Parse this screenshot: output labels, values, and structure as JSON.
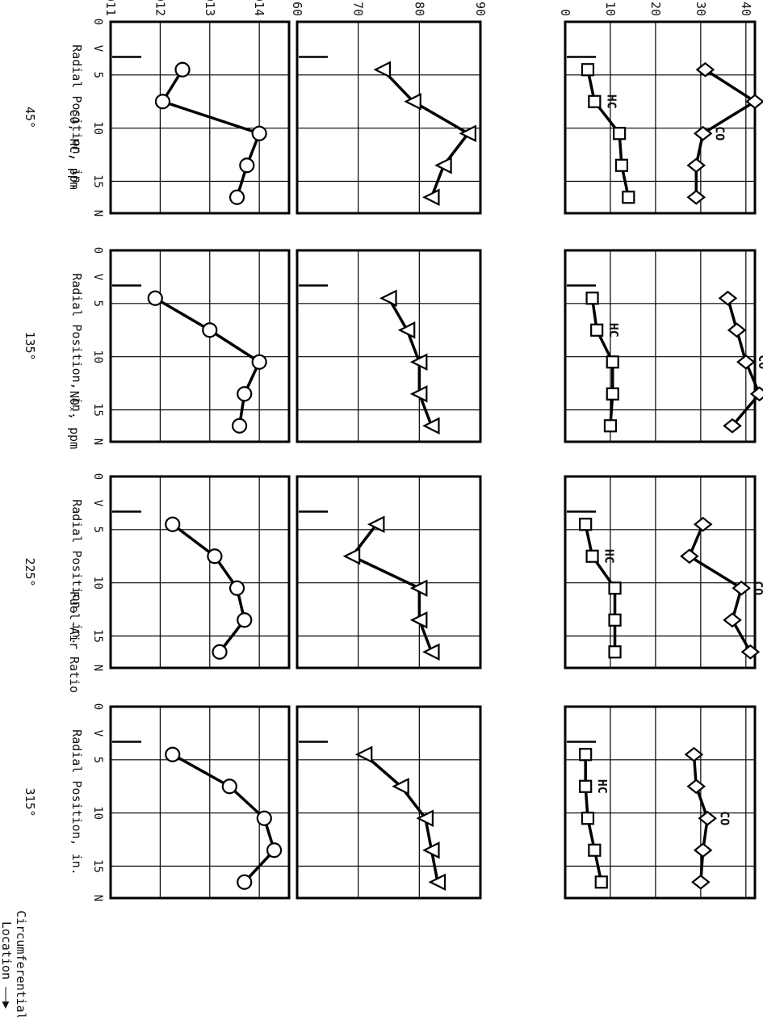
{
  "figure": {
    "row_labels": [
      "CO, HC, ppm",
      "NOₓ, ppm",
      "Fuel-Air Ratio"
    ],
    "circ_label_line1": "Circumferential",
    "circ_label_line2": "Location ——▶"
  },
  "chart_data": [
    {
      "type": "line",
      "panel": "CO/HC 45°",
      "x": [
        4.5,
        7.5,
        10.5,
        13.5,
        16.5
      ],
      "series": [
        {
          "name": "CO",
          "values": [
            31,
            42,
            30.5,
            29,
            29
          ],
          "marker": "diamond"
        },
        {
          "name": "HC",
          "values": [
            5,
            6.5,
            12,
            12.5,
            14
          ],
          "marker": "square"
        }
      ],
      "xlim": [
        0,
        18
      ],
      "ylim": [
        0,
        42
      ],
      "yticks": [
        0,
        10,
        20,
        30,
        40
      ],
      "xticks": [
        "0",
        "V",
        "5",
        "10",
        "15",
        "N"
      ],
      "xlabel": "Radial Position, in.",
      "sublabel": "45°"
    },
    {
      "type": "line",
      "panel": "NOx 45°",
      "x": [
        4.5,
        7.5,
        10.5,
        13.5,
        16.5
      ],
      "series": [
        {
          "name": "",
          "values": [
            74,
            79,
            88,
            84,
            82
          ],
          "marker": "triangle"
        }
      ],
      "xlim": [
        0,
        18
      ],
      "ylim": [
        60,
        90
      ],
      "yticks": [
        60,
        70,
        80,
        90
      ]
    },
    {
      "type": "line",
      "panel": "FAR 45°",
      "x": [
        4.5,
        7.5,
        10.5,
        13.5,
        16.5
      ],
      "series": [
        {
          "name": "",
          "values": [
            0.01245,
            0.01205,
            0.014,
            0.01375,
            0.01355
          ],
          "marker": "circle"
        }
      ],
      "xlim": [
        0,
        18
      ],
      "ylim": [
        0.011,
        0.0146
      ],
      "yticks": [
        0.011,
        0.012,
        0.013,
        0.014
      ]
    },
    {
      "type": "line",
      "panel": "CO/HC 135°",
      "x": [
        4.5,
        7.5,
        10.5,
        13.5,
        16.5
      ],
      "series": [
        {
          "name": "CO",
          "values": [
            36,
            38,
            40,
            43,
            37
          ],
          "marker": "diamond"
        },
        {
          "name": "HC",
          "values": [
            6,
            7,
            10.5,
            10.5,
            10
          ],
          "marker": "square"
        }
      ],
      "xlim": [
        0,
        18
      ],
      "ylim": [
        0,
        42
      ],
      "xticks": [
        "0",
        "V",
        "5",
        "10",
        "15",
        "N"
      ],
      "xlabel": "Radial Position, in.",
      "sublabel": "135°"
    },
    {
      "type": "line",
      "panel": "NOx 135°",
      "x": [
        4.5,
        7.5,
        10.5,
        13.5,
        16.5
      ],
      "series": [
        {
          "name": "",
          "values": [
            75,
            78,
            80,
            80,
            82
          ],
          "marker": "triangle"
        }
      ],
      "xlim": [
        0,
        18
      ],
      "ylim": [
        60,
        90
      ]
    },
    {
      "type": "line",
      "panel": "FAR 135°",
      "x": [
        4.5,
        7.5,
        10.5,
        13.5,
        16.5
      ],
      "series": [
        {
          "name": "",
          "values": [
            0.0119,
            0.013,
            0.014,
            0.0137,
            0.0136
          ],
          "marker": "circle"
        }
      ],
      "xlim": [
        0,
        18
      ],
      "ylim": [
        0.011,
        0.0146
      ]
    },
    {
      "type": "line",
      "panel": "CO/HC 225°",
      "x": [
        4.5,
        7.5,
        10.5,
        13.5,
        16.5
      ],
      "series": [
        {
          "name": "CO",
          "values": [
            30.5,
            27.5,
            39,
            37,
            41
          ],
          "marker": "diamond"
        },
        {
          "name": "HC",
          "values": [
            4.5,
            6,
            11,
            11,
            11
          ],
          "marker": "square"
        }
      ],
      "xlim": [
        0,
        18
      ],
      "ylim": [
        0,
        42
      ],
      "xticks": [
        "0",
        "V",
        "5",
        "10",
        "15",
        "N"
      ],
      "xlabel": "Radial Position, in.",
      "sublabel": "225°"
    },
    {
      "type": "line",
      "panel": "NOx 225°",
      "x": [
        4.5,
        7.5,
        10.5,
        13.5,
        16.5
      ],
      "series": [
        {
          "name": "",
          "values": [
            73,
            69,
            80,
            80,
            82
          ],
          "marker": "triangle"
        }
      ],
      "xlim": [
        0,
        18
      ],
      "ylim": [
        60,
        90
      ]
    },
    {
      "type": "line",
      "panel": "FAR 225°",
      "x": [
        4.5,
        7.5,
        10.5,
        13.5,
        16.5
      ],
      "series": [
        {
          "name": "",
          "values": [
            0.01225,
            0.0131,
            0.01355,
            0.0137,
            0.0132
          ],
          "marker": "circle"
        }
      ],
      "xlim": [
        0,
        18
      ],
      "ylim": [
        0.011,
        0.0146
      ]
    },
    {
      "type": "line",
      "panel": "CO/HC 315°",
      "x": [
        4.5,
        7.5,
        10.5,
        13.5,
        16.5
      ],
      "series": [
        {
          "name": "CO",
          "values": [
            28.5,
            29,
            31.5,
            30.5,
            30
          ],
          "marker": "diamond"
        },
        {
          "name": "HC",
          "values": [
            4.5,
            4.5,
            5,
            6.5,
            8
          ],
          "marker": "square"
        }
      ],
      "xlim": [
        0,
        18
      ],
      "ylim": [
        0,
        42
      ],
      "xticks": [
        "0",
        "V",
        "5",
        "10",
        "15",
        "N"
      ],
      "xlabel": "Radial Position, in.",
      "sublabel": "315°"
    },
    {
      "type": "line",
      "panel": "NOx 315°",
      "x": [
        4.5,
        7.5,
        10.5,
        13.5,
        16.5
      ],
      "series": [
        {
          "name": "",
          "values": [
            71,
            77,
            81,
            82,
            83
          ],
          "marker": "triangle"
        }
      ],
      "xlim": [
        0,
        18
      ],
      "ylim": [
        60,
        90
      ]
    },
    {
      "type": "line",
      "panel": "FAR 315°",
      "x": [
        4.5,
        7.5,
        10.5,
        13.5,
        16.5
      ],
      "series": [
        {
          "name": "",
          "values": [
            0.01225,
            0.0134,
            0.0141,
            0.0143,
            0.0137
          ],
          "marker": "circle"
        }
      ],
      "xlim": [
        0,
        18
      ],
      "ylim": [
        0.011,
        0.0146
      ]
    }
  ]
}
